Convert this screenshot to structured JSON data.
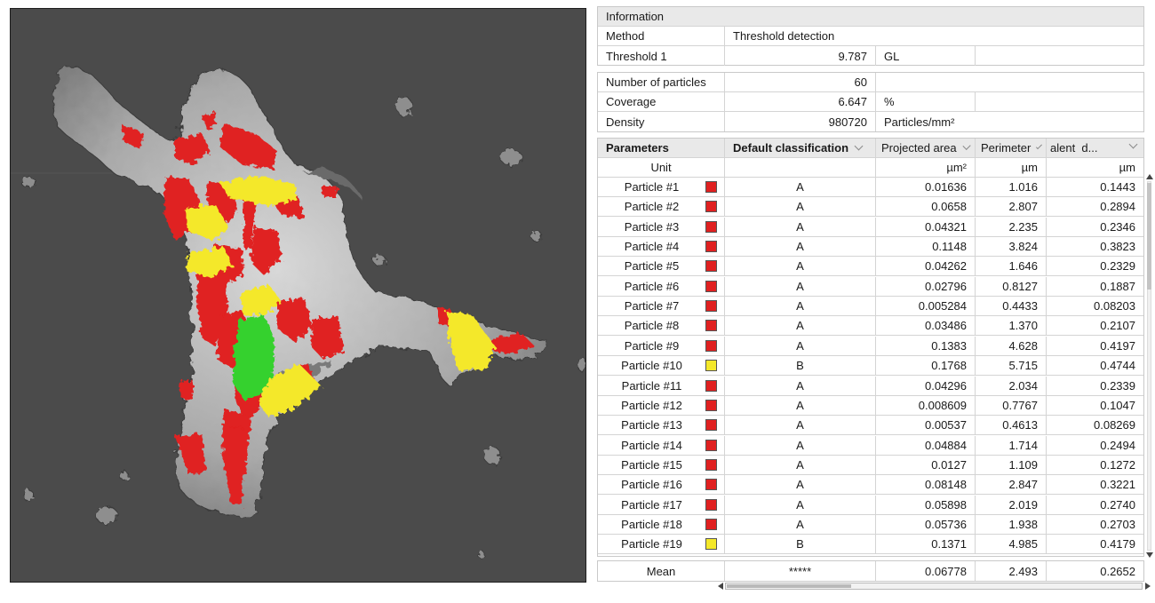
{
  "info": {
    "title": "Information",
    "method_label": "Method",
    "method_value": "Threshold detection",
    "threshold_label": "Threshold 1",
    "threshold_value": "9.787",
    "threshold_unit": "GL"
  },
  "stats": {
    "particles_label": "Number of particles",
    "particles_value": "60",
    "coverage_label": "Coverage",
    "coverage_value": "6.647",
    "coverage_unit": "%",
    "density_label": "Density",
    "density_value": "980720",
    "density_unit": "Particles/mm²"
  },
  "params": {
    "headers": [
      "Parameters",
      "Default classification",
      "Projected area",
      "Perimeter",
      "alent  d..."
    ],
    "unit_label": "Unit",
    "units": [
      "",
      "µm²",
      "µm",
      "µm"
    ],
    "rows": [
      {
        "name": "Particle #1",
        "cls": "A",
        "area": "0.01636",
        "perim": "1.016",
        "eq": "0.1443"
      },
      {
        "name": "Particle #2",
        "cls": "A",
        "area": "0.0658",
        "perim": "2.807",
        "eq": "0.2894"
      },
      {
        "name": "Particle #3",
        "cls": "A",
        "area": "0.04321",
        "perim": "2.235",
        "eq": "0.2346"
      },
      {
        "name": "Particle #4",
        "cls": "A",
        "area": "0.1148",
        "perim": "3.824",
        "eq": "0.3823"
      },
      {
        "name": "Particle #5",
        "cls": "A",
        "area": "0.04262",
        "perim": "1.646",
        "eq": "0.2329"
      },
      {
        "name": "Particle #6",
        "cls": "A",
        "area": "0.02796",
        "perim": "0.8127",
        "eq": "0.1887"
      },
      {
        "name": "Particle #7",
        "cls": "A",
        "area": "0.005284",
        "perim": "0.4433",
        "eq": "0.08203"
      },
      {
        "name": "Particle #8",
        "cls": "A",
        "area": "0.03486",
        "perim": "1.370",
        "eq": "0.2107"
      },
      {
        "name": "Particle #9",
        "cls": "A",
        "area": "0.1383",
        "perim": "4.628",
        "eq": "0.4197"
      },
      {
        "name": "Particle #10",
        "cls": "B",
        "area": "0.1768",
        "perim": "5.715",
        "eq": "0.4744"
      },
      {
        "name": "Particle #11",
        "cls": "A",
        "area": "0.04296",
        "perim": "2.034",
        "eq": "0.2339"
      },
      {
        "name": "Particle #12",
        "cls": "A",
        "area": "0.008609",
        "perim": "0.7767",
        "eq": "0.1047"
      },
      {
        "name": "Particle #13",
        "cls": "A",
        "area": "0.00537",
        "perim": "0.4613",
        "eq": "0.08269"
      },
      {
        "name": "Particle #14",
        "cls": "A",
        "area": "0.04884",
        "perim": "1.714",
        "eq": "0.2494"
      },
      {
        "name": "Particle #15",
        "cls": "A",
        "area": "0.0127",
        "perim": "1.109",
        "eq": "0.1272"
      },
      {
        "name": "Particle #16",
        "cls": "A",
        "area": "0.08148",
        "perim": "2.847",
        "eq": "0.3221"
      },
      {
        "name": "Particle #17",
        "cls": "A",
        "area": "0.05898",
        "perim": "2.019",
        "eq": "0.2740"
      },
      {
        "name": "Particle #18",
        "cls": "A",
        "area": "0.05736",
        "perim": "1.938",
        "eq": "0.2703"
      },
      {
        "name": "Particle #19",
        "cls": "B",
        "area": "0.1371",
        "perim": "4.985",
        "eq": "0.4179"
      }
    ],
    "mean": {
      "label": "Mean",
      "cls": "*****",
      "area": "0.06778",
      "perim": "2.493",
      "eq": "0.2652"
    }
  },
  "colors": {
    "class_a": "#e02020",
    "class_b": "#f4e82a",
    "highlight": "#35d12f",
    "background": "#4b4b4b"
  }
}
